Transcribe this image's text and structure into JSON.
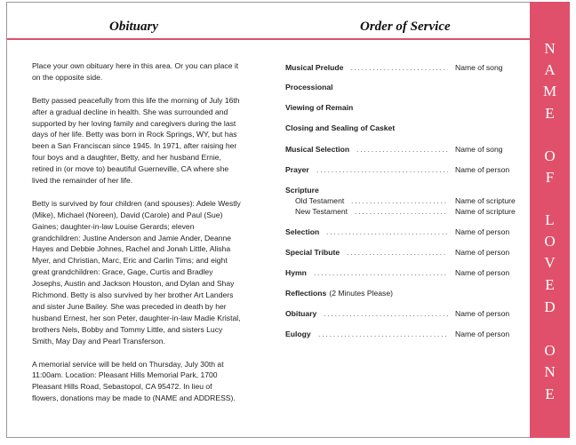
{
  "obituary": {
    "title": "Obituary",
    "paragraphs": [
      [
        "Place your own obituary here in this area. Or you can place it",
        "on the opposite side."
      ],
      [
        "Betty passed peacefully from this life the morning of July 16th",
        "after a gradual decline in health.  She was surrounded and",
        "supported by her loving family and caregivers during the last",
        "days of her life.  Betty was born in Rock Springs, WY, but has",
        "been a San Franciscan since 1945.  In 1971, after raising her",
        "four boys and a daughter, Betty, and her husband Ernie,",
        "retired in (or move to) beautiful Guerneville, CA where she",
        "lived the remainder of her life."
      ],
      [
        "Betty is survived by four children (and spouses): Adele Westly",
        "(Mike), Michael (Noreen), David (Carole) and Paul (Sue)",
        "Gaines;  daughter-in-law Louise Gerards;  eleven",
        "grandchildren: Justine Anderson and Jamie Ander, Deanne",
        "Hayes and Debbie Johnes, Rachel and Jonah Little, Alisha",
        "Myer, and Christian, Marc, Eric and Carlin Tims;  and eight",
        "great grandchildren: Grace, Gage, Curtis and Bradley",
        "Josephs, Austin and Jackson Houston, and Dylan and Shay",
        "Richmond.  Betty is also survived by her brother Art Landers",
        "and sister June Bailey.  She was preceded in death by her",
        "husband Ernest, her son Peter, daughter-in-law Madie Kristal,",
        "brothers Nels, Bobby and Tommy Little, and sisters Lucy",
        "Smith, May Day and Pearl Transferson."
      ],
      [
        "A memorial service will be held on Thursday, July 30th at",
        "11:00am.  Location:  Pleasant Hills Memorial Park, 1700",
        "Pleasant Hills Road, Sebastopol, CA 95472.  In lieu of",
        "flowers, donations may be made to (NAME and ADDRESS)."
      ]
    ]
  },
  "service": {
    "title": "Order of Service",
    "items": [
      {
        "label": "Musical Prelude",
        "value": "Name of song"
      },
      {
        "label": "Processional",
        "value": ""
      },
      {
        "label": "Viewing of Remain",
        "value": ""
      },
      {
        "label": "Closing and Sealing of Casket",
        "value": ""
      },
      {
        "label": "Musical Selection",
        "value": "Name of song"
      },
      {
        "label": "Prayer",
        "value": "Name of person"
      },
      {
        "label": "Scripture",
        "value": ""
      },
      {
        "label": "Old Testament",
        "value": "Name of scripture",
        "sub": true
      },
      {
        "label": "New Testament",
        "value": "Name of scripture",
        "sub": true
      },
      {
        "label": "Selection",
        "value": "Name of person"
      },
      {
        "label": "Special Tribute",
        "value": "Name of person"
      },
      {
        "label": "Hymn",
        "value": "Name of person"
      },
      {
        "label": "Reflections",
        "note": "(2 Minutes Please)",
        "value": ""
      },
      {
        "label": "Obituary",
        "value": "Name of person"
      },
      {
        "label": "Eulogy",
        "value": "Name of person"
      }
    ]
  },
  "side_banner": {
    "text": "NAME OF LOVED ONE",
    "color": "#e0506b"
  }
}
